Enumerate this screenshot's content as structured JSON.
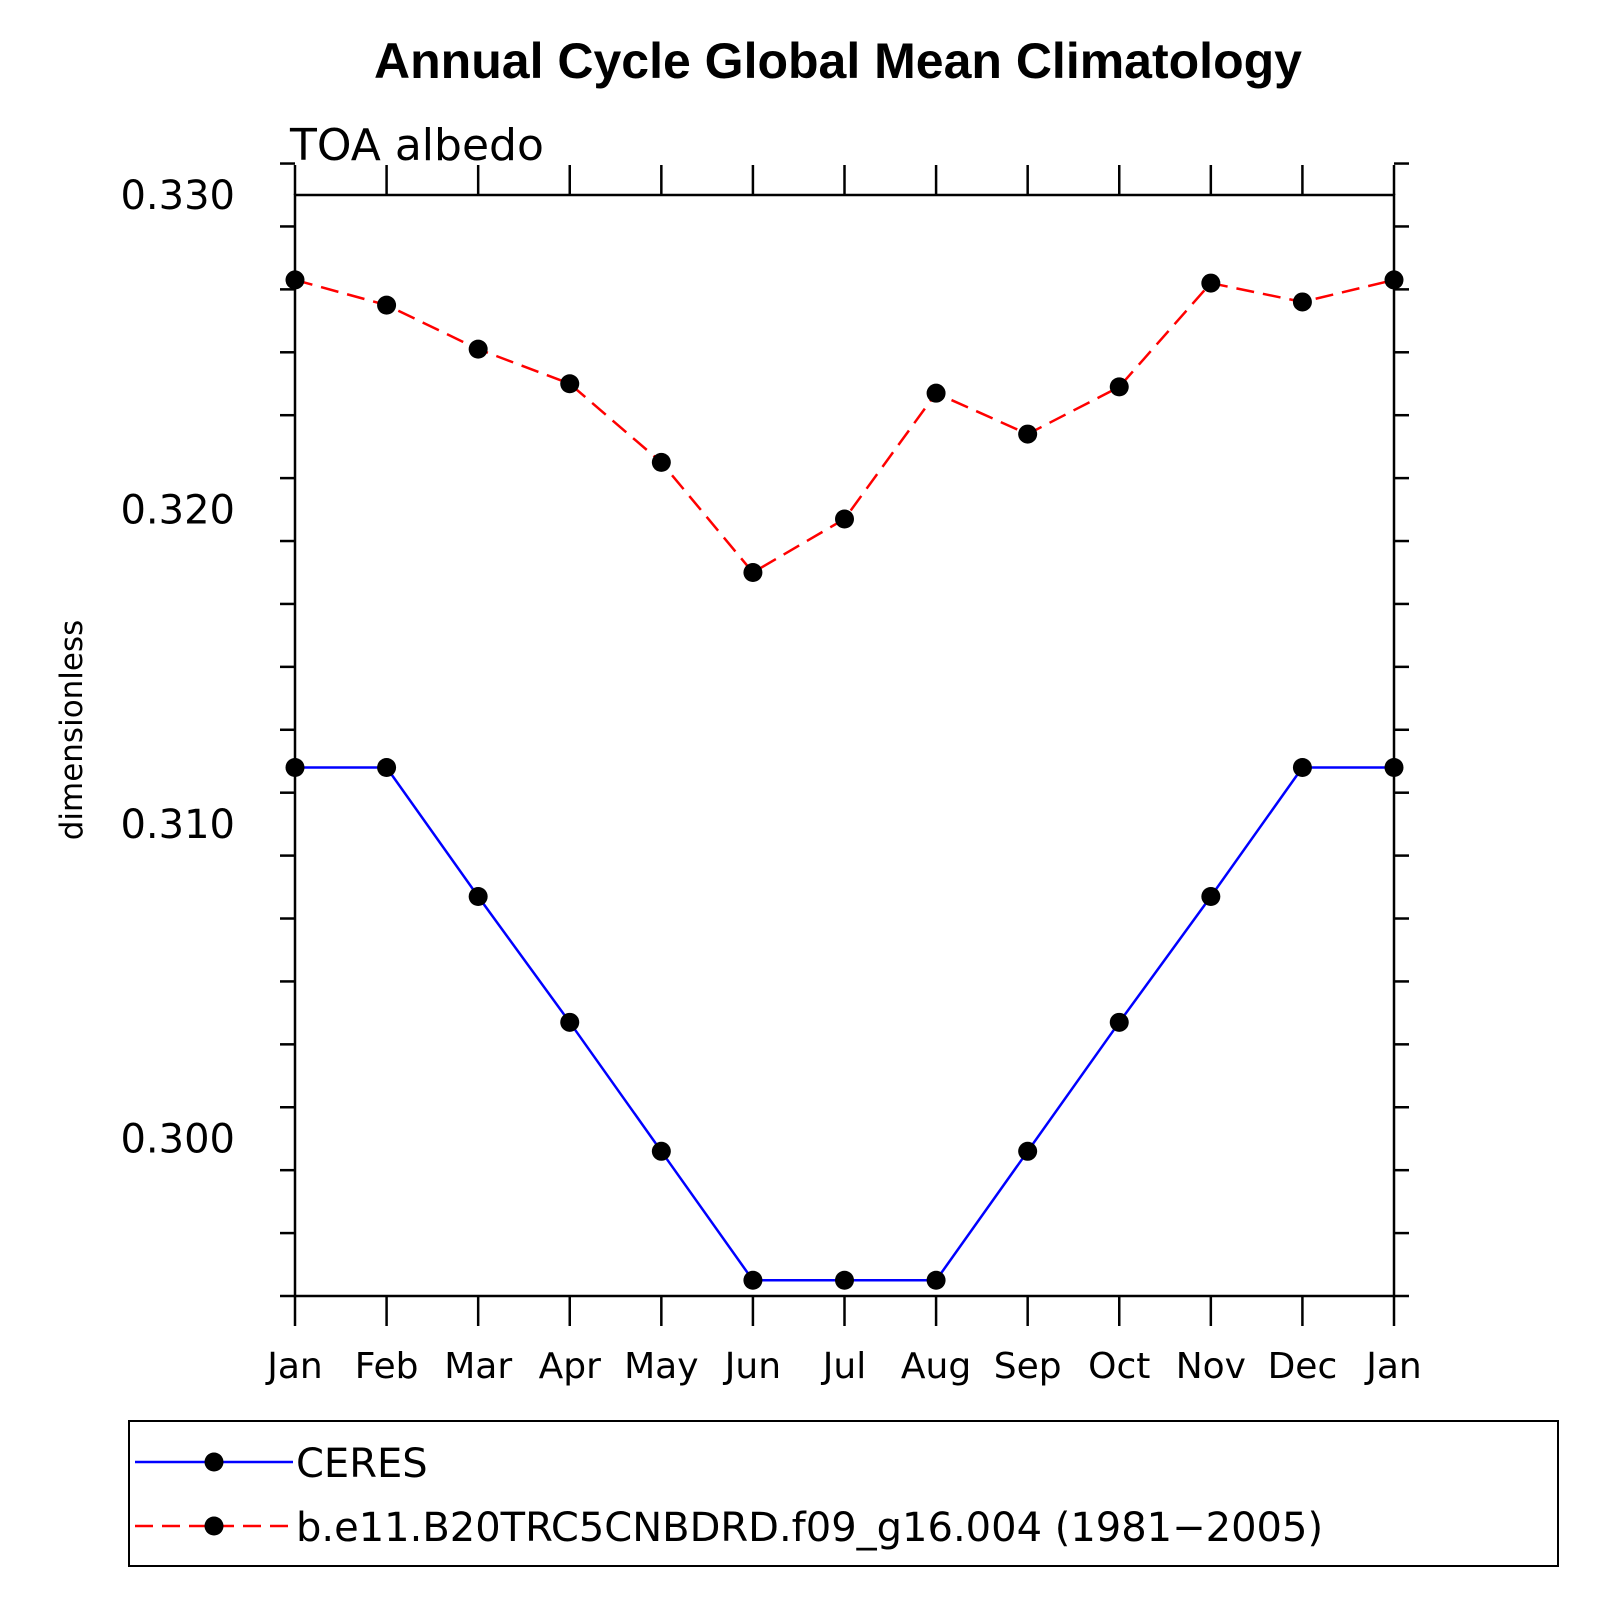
{
  "chart_data": {
    "type": "line",
    "title": "Annual Cycle Global Mean Climatology",
    "subtitle": "TOA albedo",
    "xlabel": "",
    "ylabel": "dimensionless",
    "categories": [
      "Jan",
      "Feb",
      "Mar",
      "Apr",
      "May",
      "Jun",
      "Jul",
      "Aug",
      "Sep",
      "Oct",
      "Nov",
      "Dec",
      "Jan"
    ],
    "ylim": [
      0.295,
      0.33
    ],
    "yticks": [
      0.3,
      0.31,
      0.32,
      0.33
    ],
    "ytick_labels": [
      "0.300",
      "0.310",
      "0.320",
      "0.330"
    ],
    "y_minor_step": 0.002,
    "series": [
      {
        "name": "CERES",
        "color": "#0000ff",
        "dash": "solid",
        "marker": "circle",
        "values": [
          0.3118,
          0.3118,
          0.3077,
          0.3037,
          0.2996,
          0.2955,
          0.2955,
          0.2955,
          0.2996,
          0.3037,
          0.3077,
          0.3118,
          0.3118
        ]
      },
      {
        "name": "b.e11.B20TRC5CNBDRD.f09_g16.004 (1981-2005)",
        "color": "#ff0000",
        "dash": "dashed",
        "marker": "circle",
        "values": [
          0.3273,
          0.3265,
          0.3251,
          0.324,
          0.3215,
          0.318,
          0.3197,
          0.3237,
          0.3224,
          0.3239,
          0.3272,
          0.3266,
          0.3273
        ]
      }
    ],
    "legend": {
      "placement": "bottom",
      "entries": [
        "CERES",
        "b.e11.B20TRC5CNBDRD.f09_g16.004 (1981−2005)"
      ]
    }
  }
}
